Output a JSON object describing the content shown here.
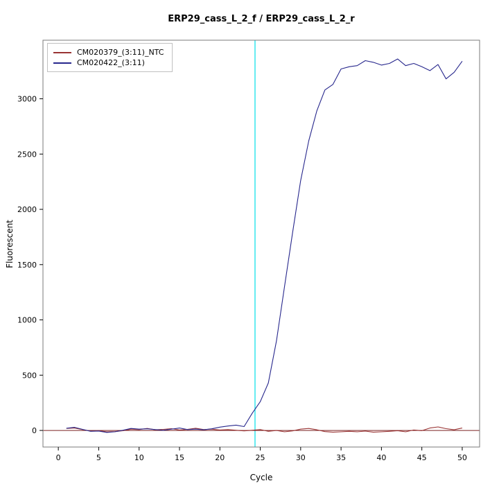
{
  "chart_data": {
    "type": "line",
    "title": "ERP29_cass_L_2_f / ERP29_cass_L_2_r",
    "xlabel": "Cycle",
    "ylabel": "Fluorescent",
    "grid": false,
    "legend_position": "top-left",
    "xlim": [
      -1.9,
      52.15
    ],
    "ylim": [
      -150,
      3530
    ],
    "x_ticks": [
      0,
      5,
      10,
      15,
      20,
      25,
      30,
      35,
      40,
      45,
      50
    ],
    "y_ticks": [
      0,
      500,
      1000,
      1500,
      2000,
      2500,
      3000
    ],
    "cycles": [
      1,
      2,
      3,
      4,
      5,
      6,
      7,
      8,
      9,
      10,
      11,
      12,
      13,
      14,
      15,
      16,
      17,
      18,
      19,
      20,
      21,
      22,
      23,
      24,
      25,
      26,
      27,
      28,
      29,
      30,
      31,
      32,
      33,
      34,
      35,
      36,
      37,
      38,
      39,
      40,
      41,
      42,
      43,
      44,
      45,
      46,
      47,
      48,
      49,
      50
    ],
    "series": [
      {
        "name": "CM020379_(3:11)_NTC",
        "color": "#993333",
        "values": [
          18,
          22,
          8,
          -6,
          -2,
          -12,
          -10,
          -2,
          12,
          8,
          18,
          6,
          10,
          16,
          4,
          10,
          20,
          8,
          12,
          4,
          8,
          2,
          -4,
          2,
          8,
          -8,
          0,
          -12,
          -4,
          12,
          18,
          6,
          -10,
          -16,
          -12,
          -8,
          -12,
          -6,
          -16,
          -12,
          -8,
          -2,
          -12,
          4,
          -2,
          22,
          32,
          16,
          6,
          22
        ]
      },
      {
        "name": "CM020422_(3:11)",
        "color": "#26268c",
        "values": [
          20,
          28,
          10,
          -8,
          -5,
          -18,
          -12,
          2,
          18,
          12,
          15,
          8,
          2,
          12,
          22,
          8,
          12,
          6,
          15,
          30,
          40,
          48,
          35,
          155,
          260,
          430,
          810,
          1300,
          1790,
          2260,
          2620,
          2890,
          3080,
          3130,
          3270,
          3290,
          3300,
          3345,
          3330,
          3305,
          3320,
          3360,
          3300,
          3320,
          3290,
          3255,
          3310,
          3180,
          3240,
          3340
        ]
      }
    ],
    "threshold_line": {
      "cycle": 24.35,
      "color": "#00dfe8"
    },
    "baseline": {
      "value": 0,
      "color": "#7a2020"
    }
  }
}
